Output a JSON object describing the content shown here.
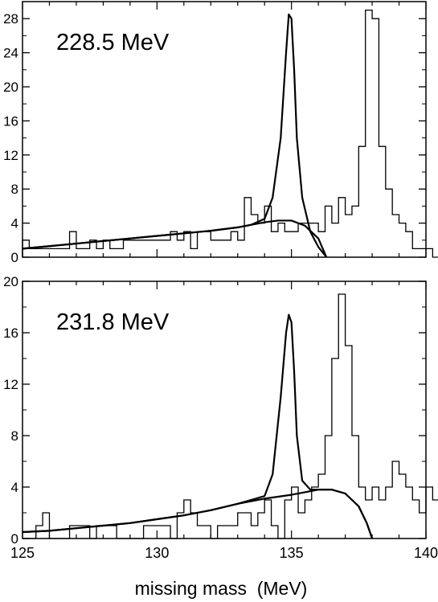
{
  "chart_data": [
    {
      "type": "line",
      "annotation": "228.5 MeV",
      "xlim": [
        125,
        140
      ],
      "ylim": [
        0,
        30
      ],
      "yticks": [
        0,
        4,
        8,
        12,
        16,
        20,
        24,
        28
      ],
      "histogram": {
        "bin_width": 0.25,
        "x_start": 125,
        "counts": [
          2,
          1,
          1,
          1,
          1,
          1,
          1,
          3,
          1,
          1,
          2,
          1,
          2,
          1,
          1,
          2,
          2,
          2,
          2,
          2,
          2,
          2,
          3,
          2,
          3,
          1,
          3,
          3,
          2,
          2,
          2,
          3,
          2,
          7,
          5,
          4,
          6,
          3,
          4,
          3,
          3,
          4,
          4,
          4,
          3,
          6,
          4,
          7,
          5,
          6,
          13,
          29,
          28,
          13,
          8,
          5,
          4,
          3,
          1,
          1,
          1,
          0,
          0,
          0,
          0,
          0,
          0,
          0,
          0,
          0
        ]
      },
      "curves": [
        {
          "name": "fit",
          "x": [
            125,
            126,
            127,
            128,
            129,
            130,
            131,
            132,
            133,
            133.5,
            134,
            134.3,
            134.6,
            134.8,
            134.9,
            135,
            135.1,
            135.2,
            135.4,
            135.7,
            136,
            136.3
          ],
          "y": [
            1,
            1.3,
            1.6,
            1.9,
            2.2,
            2.5,
            2.8,
            3.1,
            3.5,
            3.8,
            4.5,
            7,
            14,
            24,
            28.5,
            28,
            22,
            14,
            7,
            3,
            1.2,
            0
          ]
        },
        {
          "name": "background",
          "x": [
            125,
            126,
            127,
            128,
            129,
            130,
            131,
            132,
            133,
            134,
            134.5,
            135,
            135.5,
            136,
            136.3
          ],
          "y": [
            1,
            1.3,
            1.6,
            1.9,
            2.2,
            2.5,
            2.8,
            3.1,
            3.5,
            4.1,
            4.3,
            4.3,
            3.7,
            2.2,
            0
          ]
        }
      ]
    },
    {
      "type": "line",
      "annotation": "231.8 MeV",
      "xlim": [
        125,
        140
      ],
      "ylim": [
        0,
        20
      ],
      "yticks": [
        0,
        4,
        8,
        12,
        16,
        20
      ],
      "histogram": {
        "bin_width": 0.25,
        "x_start": 125,
        "counts": [
          0,
          0,
          1,
          2,
          0,
          0,
          0,
          1,
          1,
          1,
          0,
          1,
          1,
          1,
          0,
          0,
          0,
          0,
          1,
          1,
          1,
          1,
          0,
          2,
          3,
          2,
          1,
          1,
          0,
          1,
          1,
          1,
          2,
          2,
          1,
          2,
          3,
          1,
          0,
          3,
          4,
          2,
          3,
          4,
          5,
          8,
          14,
          19,
          15,
          8,
          4,
          3,
          4,
          3,
          4,
          6,
          5,
          4,
          3,
          2,
          4,
          3,
          1,
          0,
          0,
          0,
          0,
          0,
          0,
          0
        ]
      },
      "curves": [
        {
          "name": "fit",
          "x": [
            125,
            126,
            127,
            128,
            129,
            130,
            131,
            132,
            133,
            133.5,
            134,
            134.3,
            134.6,
            134.8,
            134.9,
            135,
            135.1,
            135.2,
            135.4,
            135.7,
            136,
            136.5,
            137,
            137.5,
            137.8,
            138
          ],
          "y": [
            0.5,
            0.6,
            0.8,
            1,
            1.2,
            1.5,
            1.8,
            2.2,
            2.7,
            3,
            3.3,
            5,
            11,
            16,
            17.4,
            16.8,
            13,
            8,
            4.5,
            3.8,
            3.8,
            3.8,
            3.5,
            2.5,
            1.2,
            0
          ]
        },
        {
          "name": "background",
          "x": [
            125,
            126,
            127,
            128,
            129,
            130,
            131,
            132,
            133,
            134,
            135,
            135.5,
            136,
            136.5,
            137,
            137.5,
            137.8,
            138
          ],
          "y": [
            0.5,
            0.6,
            0.8,
            1,
            1.2,
            1.5,
            1.8,
            2.2,
            2.7,
            3.1,
            3.4,
            3.6,
            3.8,
            3.8,
            3.5,
            2.5,
            1.2,
            0
          ]
        }
      ]
    }
  ],
  "xaxis": {
    "label": "missing mass  (MeV)",
    "ticks": [
      125,
      130,
      135,
      140
    ]
  }
}
